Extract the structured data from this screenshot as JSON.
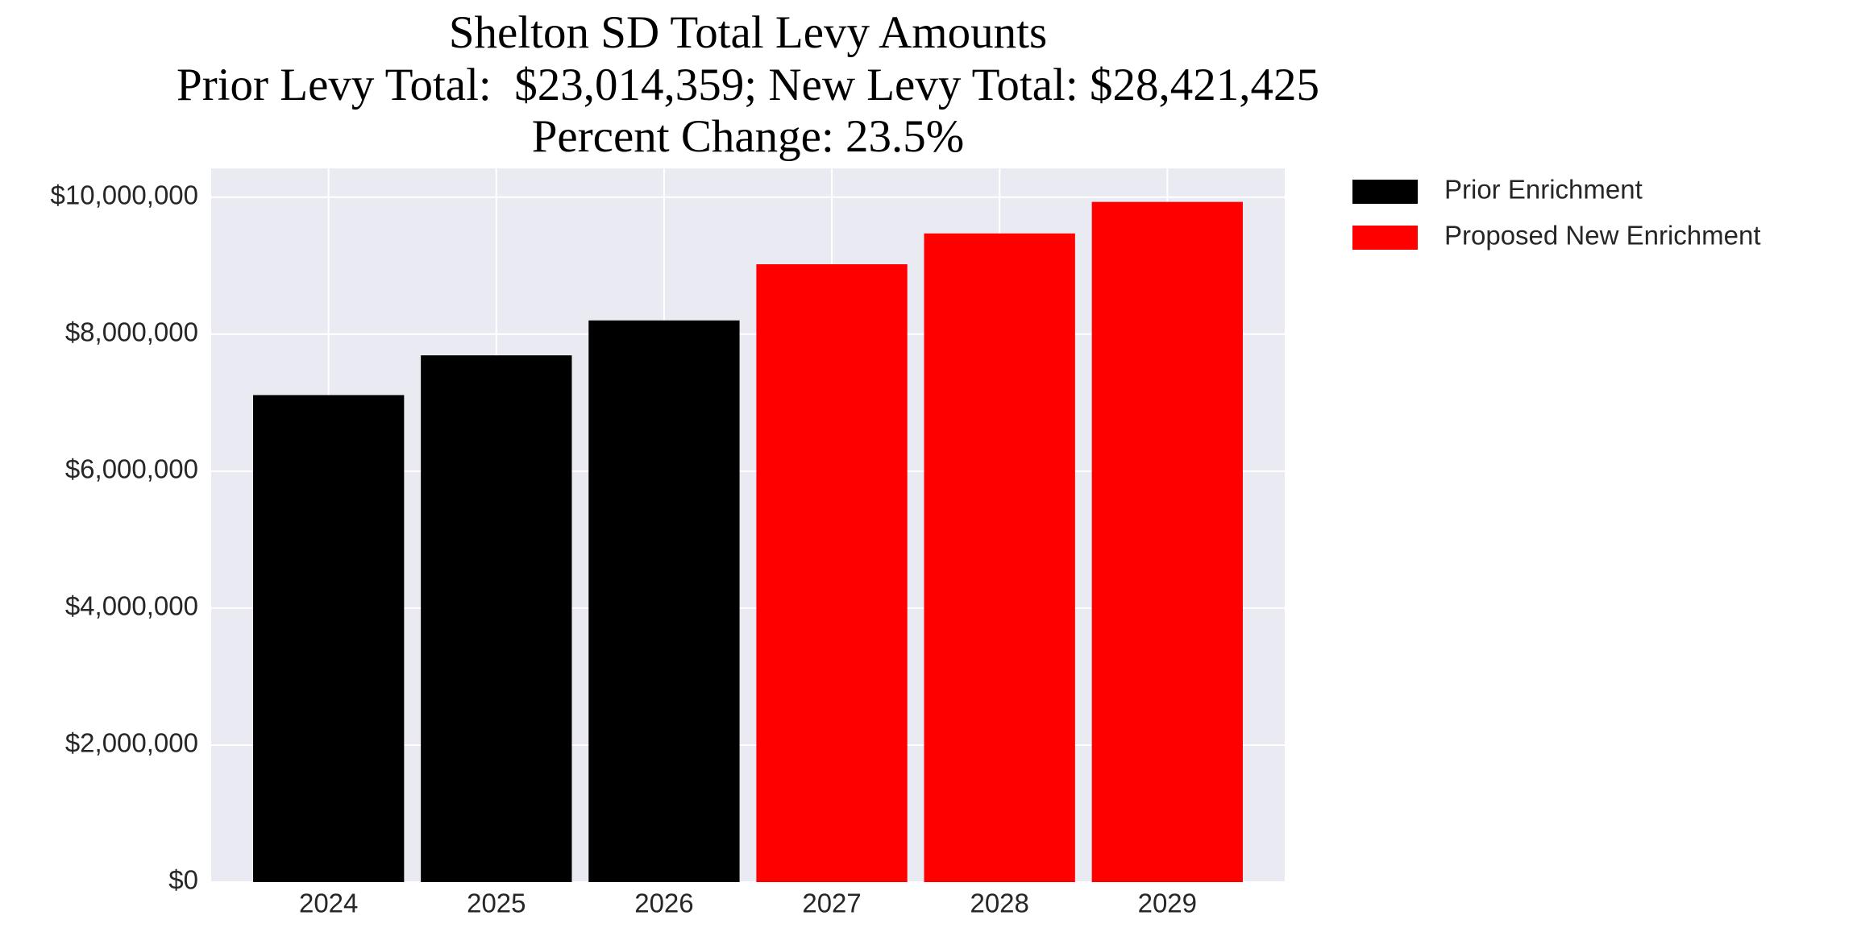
{
  "chart_data": {
    "type": "bar",
    "title": "Shelton SD Total Levy Amounts",
    "subtitle": [
      "Prior Levy Total:  $23,014,359; New Levy Total: $28,421,425",
      "Percent Change: 23.5%"
    ],
    "categories": [
      "2024",
      "2025",
      "2026",
      "2027",
      "2028",
      "2029"
    ],
    "series": [
      {
        "name": "Prior Enrichment",
        "color": "#000000",
        "values": [
          7110000,
          7690000,
          8200000,
          null,
          null,
          null
        ]
      },
      {
        "name": "Proposed New Enrichment",
        "color": "#ff0000",
        "values": [
          null,
          null,
          null,
          9020000,
          9470000,
          9930000
        ]
      }
    ],
    "ylim": [
      0,
      10420000
    ],
    "yticks": [
      {
        "value": 0,
        "label": "$0"
      },
      {
        "value": 2000000,
        "label": "$2,000,000"
      },
      {
        "value": 4000000,
        "label": "$4,000,000"
      },
      {
        "value": 6000000,
        "label": "$6,000,000"
      },
      {
        "value": 8000000,
        "label": "$8,000,000"
      },
      {
        "value": 10000000,
        "label": "$10,000,000"
      }
    ],
    "grid": true,
    "legend": "outside-upper-right"
  }
}
